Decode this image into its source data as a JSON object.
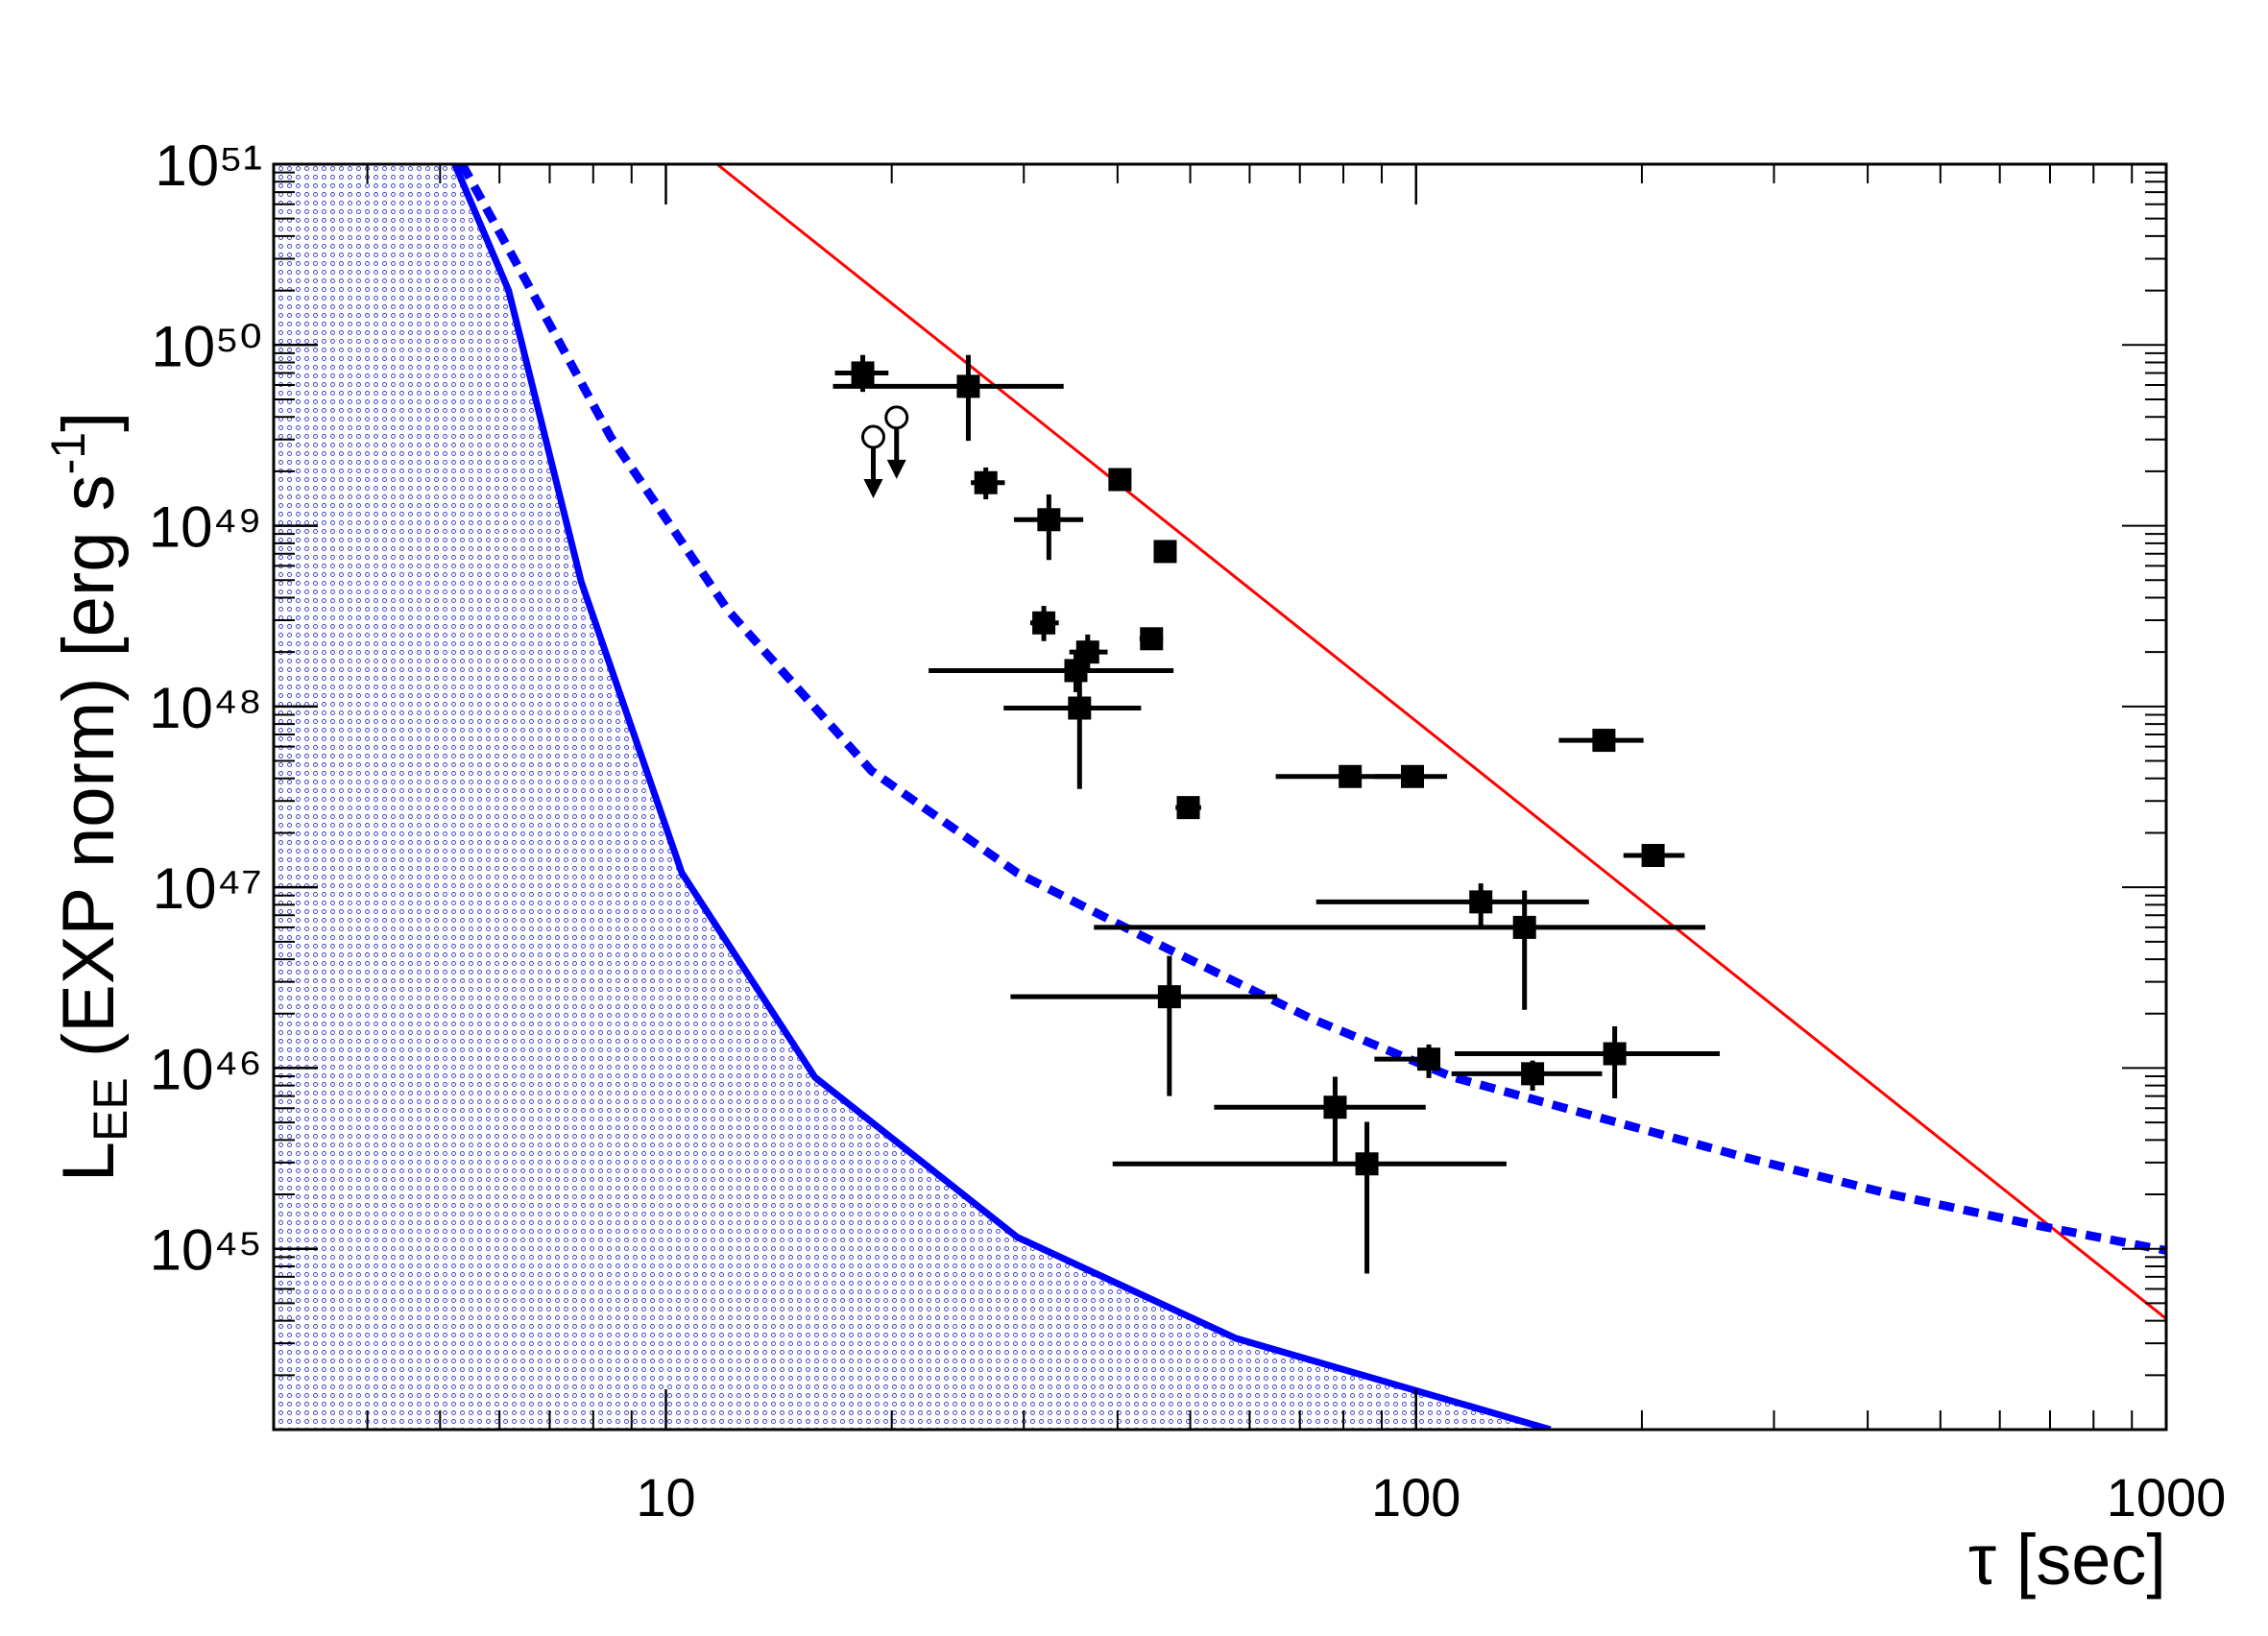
{
  "chart_data": {
    "type": "scatter",
    "xlabel": "τ [sec]",
    "ylabel": [
      "L",
      "EE",
      " (EXP norm) [erg s",
      "-1",
      "]"
    ],
    "xscale": "log",
    "yscale": "log",
    "xlim": [
      3,
      1000
    ],
    "ylim": [
      1e+44,
      1e+51
    ],
    "xticks": [
      10,
      100,
      1000
    ],
    "yticks": [
      {
        "value": 1e+45,
        "label": "10⁴⁵"
      },
      {
        "value": 1e+46,
        "label": "10⁴⁶"
      },
      {
        "value": 1e+47,
        "label": "10⁴⁷"
      },
      {
        "value": 1e+48,
        "label": "10⁴⁸"
      },
      {
        "value": 1e+49,
        "label": "10⁴⁹"
      },
      {
        "value": 1e+50,
        "label": "10⁵⁰"
      },
      {
        "value": 1e+51,
        "label": "10⁵¹"
      }
    ],
    "points": {
      "color": "#000000",
      "x": [
        18.3,
        25.3,
        40.3,
        26.7,
        32.4,
        46.3,
        31.9,
        44.4,
        36.5,
        35.2,
        35.6,
        81.7,
        98.9,
        49.7,
        178,
        207,
        122,
        139.5,
        46.9,
        104,
        184,
        143,
        78,
        86
      ],
      "values": [
        7e+49,
        5.9e+49,
        1.8e+49,
        1.73e+49,
        1.08e+49,
        7.2e+48,
        2.9e+48,
        2.37e+48,
        2e+48,
        1.58e+48,
        9.8e+47,
        4.1e+47,
        4.1e+47,
        2.76e+47,
        6.5e+47,
        1.5e+47,
        8.3e+46,
        6e+46,
        2.48e+46,
        1.12e+46,
        1.2e+46,
        9.3e+45,
        6.07e+45,
        2.95e+45
      ],
      "x_lo": [
        16.8,
        16.7,
        null,
        25.5,
        29.1,
        null,
        30.6,
        42.8,
        34.5,
        22.4,
        28.2,
        65.0,
        88.0,
        47.8,
        155,
        189,
        73.6,
        37.2,
        28.8,
        88.0,
        112.6,
        111.5,
        53.8,
        39.4
      ],
      "x_hi": [
        19.8,
        33.9,
        null,
        28.3,
        36.0,
        null,
        33.4,
        46.0,
        38.8,
        47.5,
        43.0,
        95.0,
        110,
        51.7,
        201,
        228,
        170,
        243,
        65.3,
        106,
        254,
        177,
        103,
        132
      ],
      "y_lo": [
        5.5e+49,
        2.95e+49,
        null,
        1.4e+49,
        6.46e+48,
        null,
        2.3e+48,
        2.1e+48,
        1.6e+48,
        1.2e+48,
        3.5e+47,
        3.6e+47,
        3.7e+47,
        2.5e+47,
        5.8e+47,
        1.35e+47,
        6e+46,
        2.1e+46,
        7e+45,
        8.8e+45,
        6.8e+45,
        7.5e+45,
        2.95e+45,
        7.3e+44
      ],
      "y_hi": [
        8.8e+49,
        8.8e+49,
        null,
        2.1e+49,
        1.49e+49,
        null,
        3.6e+48,
        2.6e+48,
        2.5e+48,
        2e+48,
        1.76e+48,
        4.6e+47,
        4.5e+47,
        3e+47,
        7.2e+47,
        1.7e+47,
        1.05e+47,
        9.6e+46,
        4.17e+46,
        1.35e+46,
        1.7e+46,
        1.1e+46,
        8.95e+45,
        5.04e+45
      ]
    },
    "upper_limits": {
      "color": "#000000",
      "x": [
        18.9,
        20.3
      ],
      "values": [
        3.1e+49,
        3.97e+49
      ]
    },
    "series": [
      {
        "name": "red-line",
        "color": "#ff0000",
        "style": "solid",
        "x": [
          11.7,
          1000
        ],
        "values": [
          1e+51,
          4.1e+44
        ]
      },
      {
        "name": "blue-solid",
        "color": "#0000ff",
        "style": "solid",
        "fill": true,
        "x": [
          5.23,
          6.17,
          7.71,
          10.5,
          15.8,
          29.4,
          57.5,
          151
        ],
        "values": [
          1e+51,
          2e+50,
          4.9e+48,
          1.2e+47,
          8.9e+45,
          1.16e+45,
          3.2e+44,
          1e+44
        ]
      },
      {
        "name": "blue-dashed",
        "color": "#0000ff",
        "style": "dashed",
        "x": [
          5.35,
          6.46,
          8.44,
          12.1,
          18.8,
          29.4,
          46.0,
          72.0,
          112,
          176,
          275,
          430,
          671,
          1000
        ],
        "values": [
          1e+51,
          2.4e+50,
          3.1e+49,
          3.4e+48,
          4.4e+47,
          1.2e+47,
          4.7e+46,
          1.9e+46,
          8.9e+45,
          5.3e+45,
          3.2e+45,
          2e+45,
          1.35e+45,
          9.8e+44
        ]
      }
    ]
  }
}
